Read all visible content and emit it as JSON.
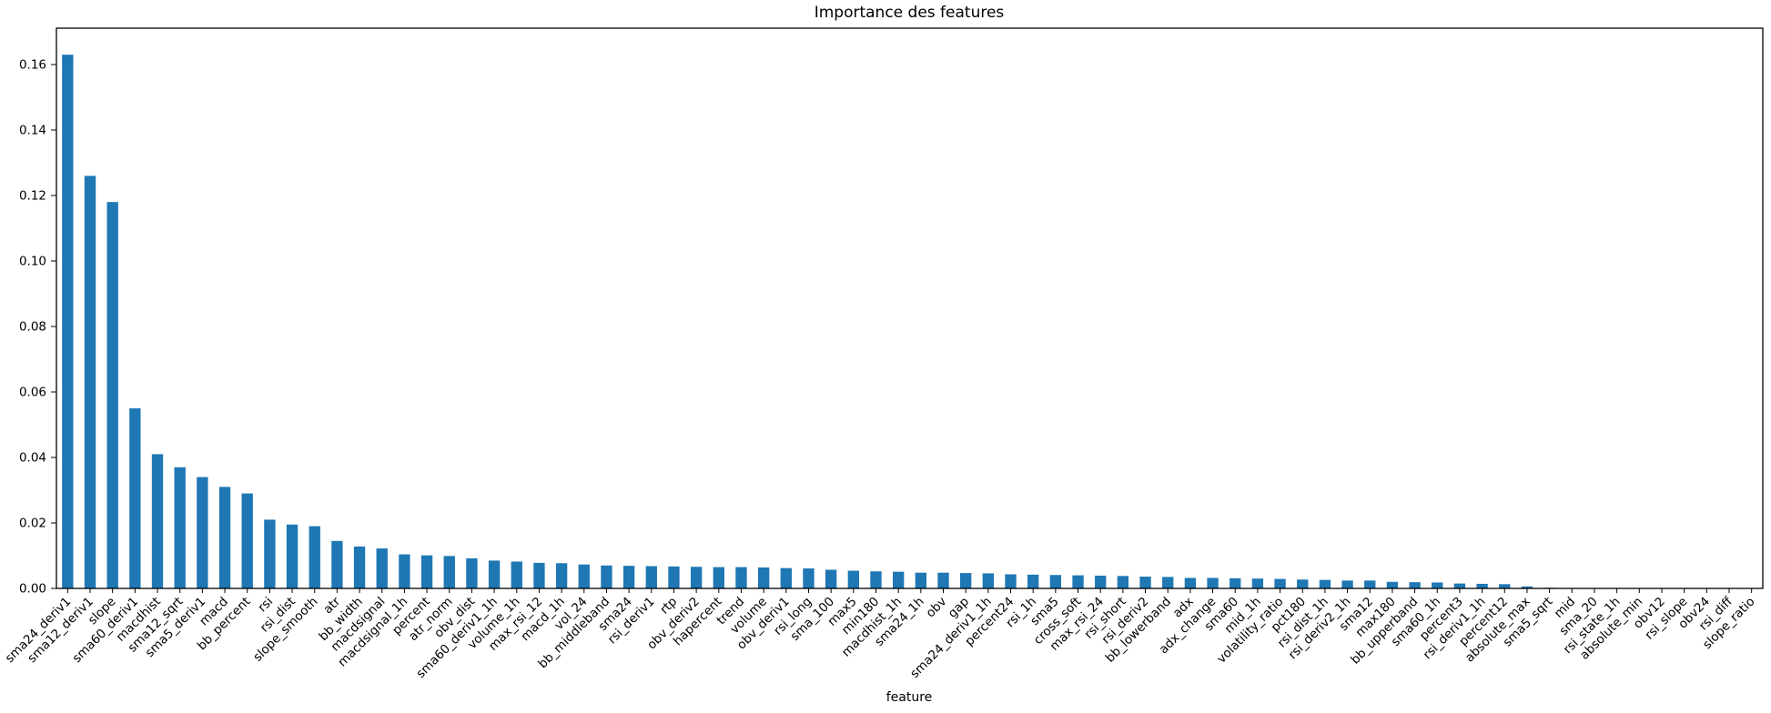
{
  "chart_data": {
    "type": "bar",
    "title": "Importance des features",
    "xlabel": "feature",
    "ylabel": "",
    "bar_color": "#1f77b4",
    "axis_color": "#000000",
    "grid": false,
    "legend_position": "none",
    "x_tick_rotation": 45,
    "ylim": [
      0,
      0.1711
    ],
    "yticks": [
      0.0,
      0.02,
      0.04,
      0.06,
      0.08,
      0.1,
      0.12,
      0.14,
      0.16
    ],
    "ytick_labels": [
      "0.00",
      "0.02",
      "0.04",
      "0.06",
      "0.08",
      "0.10",
      "0.12",
      "0.14",
      "0.16"
    ],
    "categories": [
      "sma24_deriv1",
      "sma12_deriv1",
      "slope",
      "sma60_deriv1",
      "macdhist",
      "sma12_sqrt",
      "sma5_deriv1",
      "macd",
      "bb_percent",
      "rsi",
      "rsi_dist",
      "slope_smooth",
      "atr",
      "bb_width",
      "macdsignal",
      "macdsignal_1h",
      "percent",
      "atr_norm",
      "obv_dist",
      "sma60_deriv1_1h",
      "volume_1h",
      "max_rsi_12",
      "macd_1h",
      "vol_24",
      "bb_middleband",
      "sma24",
      "rsi_deriv1",
      "rtp",
      "obv_deriv2",
      "hapercent",
      "trend",
      "volume",
      "obv_deriv1",
      "rsi_long",
      "sma_100",
      "max5",
      "min180",
      "macdhist_1h",
      "sma24_1h",
      "obv",
      "gap",
      "sma24_deriv1_1h",
      "percent24",
      "rsi_1h",
      "sma5",
      "cross_soft",
      "max_rsi_24",
      "rsi_short",
      "rsi_deriv2",
      "bb_lowerband",
      "adx",
      "adx_change",
      "sma60",
      "mid_1h",
      "volatility_ratio",
      "pct180",
      "rsi_dist_1h",
      "rsi_deriv2_1h",
      "sma12",
      "max180",
      "bb_upperband",
      "sma60_1h",
      "percent3",
      "rsi_deriv1_1h",
      "percent12",
      "absolute_max",
      "sma5_sqrt",
      "mid",
      "sma_20",
      "rsi_state_1h",
      "absolute_min",
      "obv12",
      "rsi_slope",
      "obv24",
      "rsi_diff",
      "slope_ratio"
    ],
    "values": [
      0.163,
      0.126,
      0.118,
      0.055,
      0.041,
      0.037,
      0.034,
      0.031,
      0.029,
      0.021,
      0.0195,
      0.019,
      0.0145,
      0.0128,
      0.0122,
      0.0104,
      0.0101,
      0.0099,
      0.0092,
      0.0085,
      0.0082,
      0.0078,
      0.0077,
      0.0073,
      0.007,
      0.0069,
      0.0068,
      0.0067,
      0.0066,
      0.0065,
      0.0065,
      0.0064,
      0.0062,
      0.0061,
      0.0057,
      0.0054,
      0.0052,
      0.0051,
      0.0048,
      0.0048,
      0.0047,
      0.0046,
      0.0043,
      0.0042,
      0.0041,
      0.004,
      0.0039,
      0.0038,
      0.0036,
      0.0035,
      0.0032,
      0.0032,
      0.0031,
      0.003,
      0.0029,
      0.0027,
      0.0026,
      0.0024,
      0.0024,
      0.002,
      0.0019,
      0.0018,
      0.0015,
      0.0014,
      0.0013,
      0.0006,
      0.0002,
      0.0001,
      0.0001,
      0.0001,
      0.0,
      0.0,
      0.0,
      0.0,
      0.0,
      0.0
    ]
  }
}
